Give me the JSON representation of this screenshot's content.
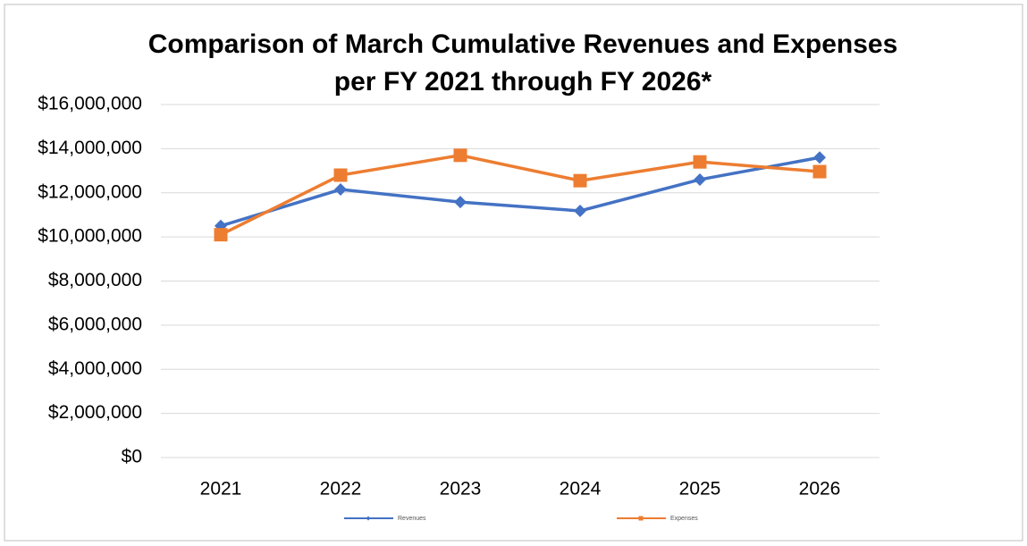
{
  "chart_data": {
    "type": "line",
    "title": [
      "Comparison of March Cumulative Revenues and Expenses",
      "per FY 2021 through FY 2026*"
    ],
    "categories": [
      "2021",
      "2022",
      "2023",
      "2024",
      "2025",
      "2026"
    ],
    "series": [
      {
        "name": "Revenues",
        "color": "#4472c4",
        "marker": "diamond",
        "values": [
          10500000,
          12150000,
          11580000,
          11180000,
          12600000,
          13600000
        ]
      },
      {
        "name": "Expenses",
        "color": "#ed7d31",
        "marker": "square",
        "values": [
          10100000,
          12800000,
          13700000,
          12550000,
          13400000,
          12960000
        ]
      }
    ],
    "ylim": [
      0,
      16000000
    ],
    "yticks": [
      {
        "value": 0,
        "label": "$0"
      },
      {
        "value": 2000000,
        "label": "$2,000,000"
      },
      {
        "value": 4000000,
        "label": "$4,000,000"
      },
      {
        "value": 6000000,
        "label": "$6,000,000"
      },
      {
        "value": 8000000,
        "label": "$8,000,000"
      },
      {
        "value": 10000000,
        "label": "$10,000,000"
      },
      {
        "value": 12000000,
        "label": "$12,000,000"
      },
      {
        "value": 14000000,
        "label": "$14,000,000"
      },
      {
        "value": 16000000,
        "label": "$16,000,000"
      }
    ],
    "grid": true,
    "legend": "bottom"
  }
}
